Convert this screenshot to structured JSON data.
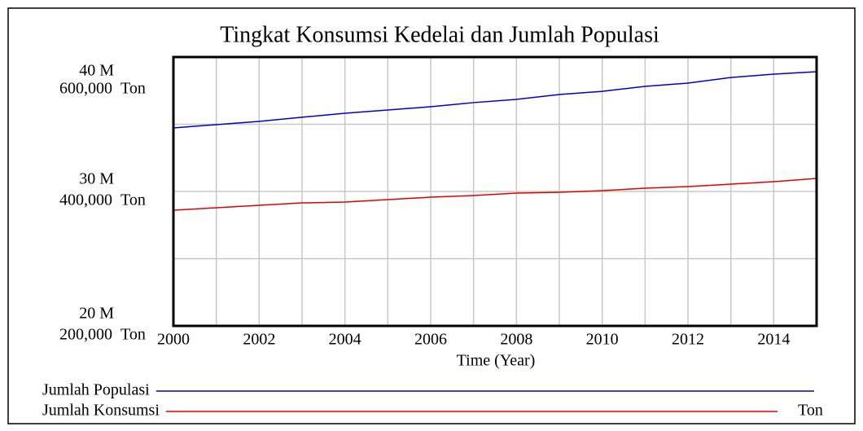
{
  "chart_data": {
    "type": "line",
    "title": "Tingkat Konsumsi Kedelai dan Jumlah Populasi",
    "x_label": "Time (Year)",
    "x": [
      2000,
      2001,
      2002,
      2003,
      2004,
      2005,
      2006,
      2007,
      2008,
      2009,
      2010,
      2011,
      2012,
      2013,
      2014,
      2015
    ],
    "xlim": [
      2000,
      2015
    ],
    "xticks": [
      2000,
      2002,
      2004,
      2006,
      2008,
      2010,
      2012,
      2014
    ],
    "ylim": [
      20000000,
      40000000
    ],
    "yticks": [
      {
        "value": 20000000,
        "label": "20 M"
      },
      {
        "value": 30000000,
        "label": "30 M"
      },
      {
        "value": 40000000,
        "label": "40 M"
      }
    ],
    "y2lim": [
      200000,
      600000
    ],
    "y2ticks": [
      {
        "value": 200000,
        "label": "200,000"
      },
      {
        "value": 400000,
        "label": "400,000"
      },
      {
        "value": 600000,
        "label": "600,000"
      }
    ],
    "grid": true,
    "series": [
      {
        "name": "Jumlah Populasi",
        "color": "#0000cc",
        "values": [
          34730000,
          34970000,
          35210000,
          35520000,
          35820000,
          36060000,
          36300000,
          36610000,
          36850000,
          37210000,
          37450000,
          37820000,
          38060000,
          38480000,
          38730000,
          38910000
        ]
      },
      {
        "name": "Jumlah Konsumsi",
        "color": "#e00000",
        "axis": "y2",
        "unit": "Ton",
        "values": [
          372100,
          375800,
          379400,
          383000,
          384200,
          387900,
          391500,
          393900,
          397600,
          398800,
          401200,
          404800,
          407300,
          410900,
          414500,
          419400
        ]
      }
    ]
  }
}
